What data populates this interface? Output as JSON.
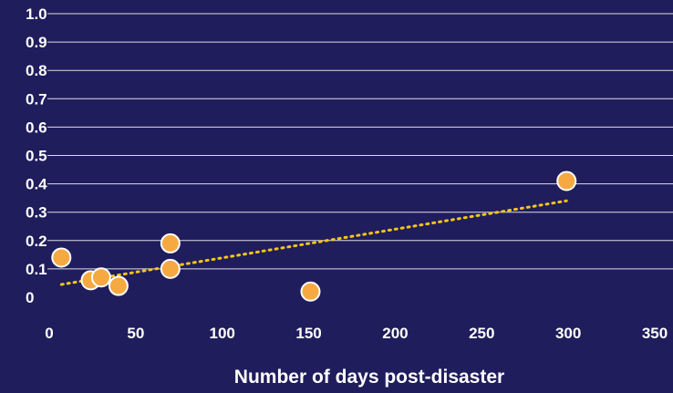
{
  "chart_data": {
    "type": "scatter",
    "title": "",
    "xlabel": "Number of days post-disaster",
    "ylabel": "",
    "xlim": [
      0,
      350
    ],
    "ylim": [
      0,
      1.0
    ],
    "x_ticks": [
      "0",
      "50",
      "100",
      "150",
      "200",
      "250",
      "300",
      "350"
    ],
    "y_ticks": [
      "0",
      "0.1",
      "0.2",
      "0.3",
      "0.4",
      "0.5",
      "0.6",
      "0.7",
      "0.8",
      "0.9",
      "1.0"
    ],
    "grid": "horizontal",
    "series": [
      {
        "points": [
          {
            "x": 7,
            "y": 0.14
          },
          {
            "x": 24,
            "y": 0.06
          },
          {
            "x": 30,
            "y": 0.07
          },
          {
            "x": 40,
            "y": 0.04
          },
          {
            "x": 70,
            "y": 0.19
          },
          {
            "x": 70,
            "y": 0.1
          },
          {
            "x": 151,
            "y": 0.02
          },
          {
            "x": 299,
            "y": 0.41
          }
        ]
      }
    ],
    "trendline": {
      "type": "linear",
      "x_range": [
        7,
        299
      ],
      "y_range": [
        0.045,
        0.34
      ]
    }
  },
  "colors": {
    "background": "#1f1d5c",
    "point_fill": "#f7a941",
    "point_outline": "#ffffff",
    "trendline": "#f5c518",
    "text": "#ffffff",
    "grid": "#ffffff"
  }
}
